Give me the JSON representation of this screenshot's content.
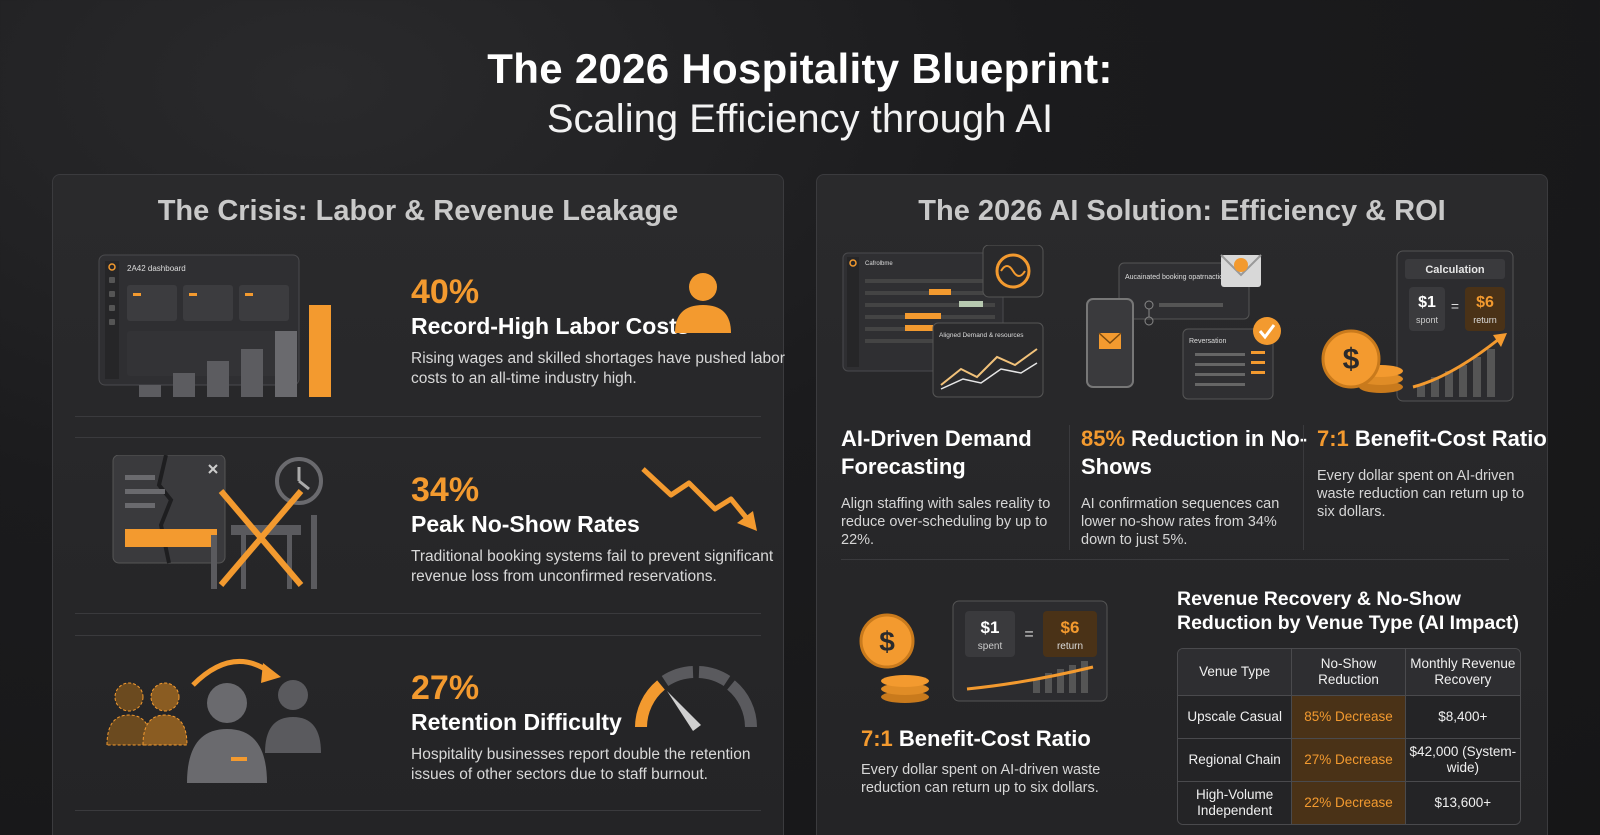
{
  "header": {
    "title": "The 2026 Hospitality Blueprint:",
    "subtitle": "Scaling Efficiency through AI"
  },
  "crisis": {
    "title": "The Crisis: Labor & Revenue Leakage",
    "dashboard_label": "2A42 dashboard",
    "items": [
      {
        "pct": "40%",
        "heading": "Record-High Labor Costs",
        "desc": "Rising wages and skilled shortages have pushed labor costs to an all-time industry high.",
        "icon": "person-icon"
      },
      {
        "pct": "34%",
        "heading": "Peak No-Show Rates",
        "desc": "Traditional booking systems fail to prevent significant revenue loss from unconfirmed reservations.",
        "icon": "trend-down-icon"
      },
      {
        "pct": "27%",
        "heading": "Retention Difficulty",
        "desc": "Hospitality businesses report double the retention issues of other sectors due to staff burnout.",
        "icon": "gauge-icon"
      }
    ]
  },
  "solution": {
    "title": "The 2026 AI Solution: Efficiency & ROI",
    "illustrations": {
      "forecast_window_title": "Cafrolbme",
      "forecast_chart_label": "Aligned Demand & resources",
      "booking_card_text": "Aucainated booking opatrnaction sequence",
      "reservation_label": "Reversation",
      "calc_label": "Calculation",
      "calc_left_value": "$1",
      "calc_left_caption": "spont",
      "calc_equals": "=",
      "calc_right_value": "$6",
      "calc_right_caption": "return",
      "ratio_left_value": "$1",
      "ratio_left_caption": "spent",
      "ratio_right_value": "$6",
      "ratio_right_caption": "return"
    },
    "columns": [
      {
        "heading_accent": "",
        "heading": "AI-Driven Demand Forecasting",
        "desc": "Align staffing with sales reality to reduce over-scheduling by up to 22%."
      },
      {
        "heading_accent": "85%",
        "heading": " Reduction in No-Shows",
        "desc": "AI confirmation sequences can lower no-show rates from 34% down to just 5%."
      },
      {
        "heading_accent": "7:1",
        "heading": " Benefit-Cost Ratio",
        "desc": "Every dollar spent on AI-driven waste reduction can return up to six dollars."
      }
    ],
    "ratio_block": {
      "heading_accent": "7:1",
      "heading": " Benefit-Cost Ratio",
      "desc": "Every dollar spent on AI-driven waste reduction can return up to six dollars."
    },
    "table": {
      "title": "Revenue Recovery & No-Show Reduction by Venue Type (AI Impact)",
      "headers": [
        "Venue Type",
        "No-Show Reduction",
        "Monthly Revenue Recovery"
      ],
      "rows": [
        [
          "Upscale Casual",
          "85% Decrease",
          "$8,400+"
        ],
        [
          "Regional Chain",
          "27% Decrease",
          "$42,000 (System-wide)"
        ],
        [
          "High-Volume Independent",
          "22% Decrease",
          "$13,600+"
        ]
      ]
    }
  },
  "colors": {
    "accent": "#f39a2f",
    "background": "#1b1b1d",
    "panel": "#28282a"
  }
}
